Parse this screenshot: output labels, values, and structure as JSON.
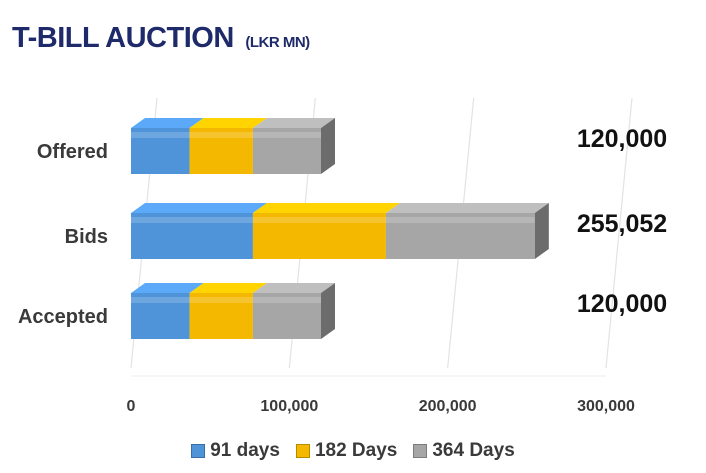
{
  "header": {
    "title": "T-BILL AUCTION",
    "subtitle": "(LKR MN)"
  },
  "colors": {
    "title": "#1f2a6b",
    "s91": "#4f93d8",
    "s182": "#f5b800",
    "s364": "#a6a6a6"
  },
  "chart_data": {
    "type": "bar",
    "orientation": "horizontal",
    "stacked": true,
    "three_d": true,
    "categories": [
      "Offered",
      "Bids",
      "Accepted"
    ],
    "series": [
      {
        "name": "91 days",
        "values": [
          37000,
          77000,
          37000
        ]
      },
      {
        "name": "182 Days",
        "values": [
          40000,
          84000,
          40000
        ]
      },
      {
        "name": "364 Days",
        "values": [
          43000,
          94052,
          43000
        ]
      }
    ],
    "totals": [
      "120,000",
      "255,052",
      "120,000"
    ],
    "xlim": [
      0,
      300000
    ],
    "xticks": [
      "0",
      "100,000",
      "200,000",
      "300,000"
    ],
    "xtick_values": [
      0,
      100000,
      200000,
      300000
    ],
    "grid": true,
    "legend_position": "bottom"
  },
  "legend": {
    "items": [
      {
        "label": "91 days",
        "color": "#4f93d8"
      },
      {
        "label": "182 Days",
        "color": "#f5b800"
      },
      {
        "label": "364 Days",
        "color": "#a6a6a6"
      }
    ]
  }
}
